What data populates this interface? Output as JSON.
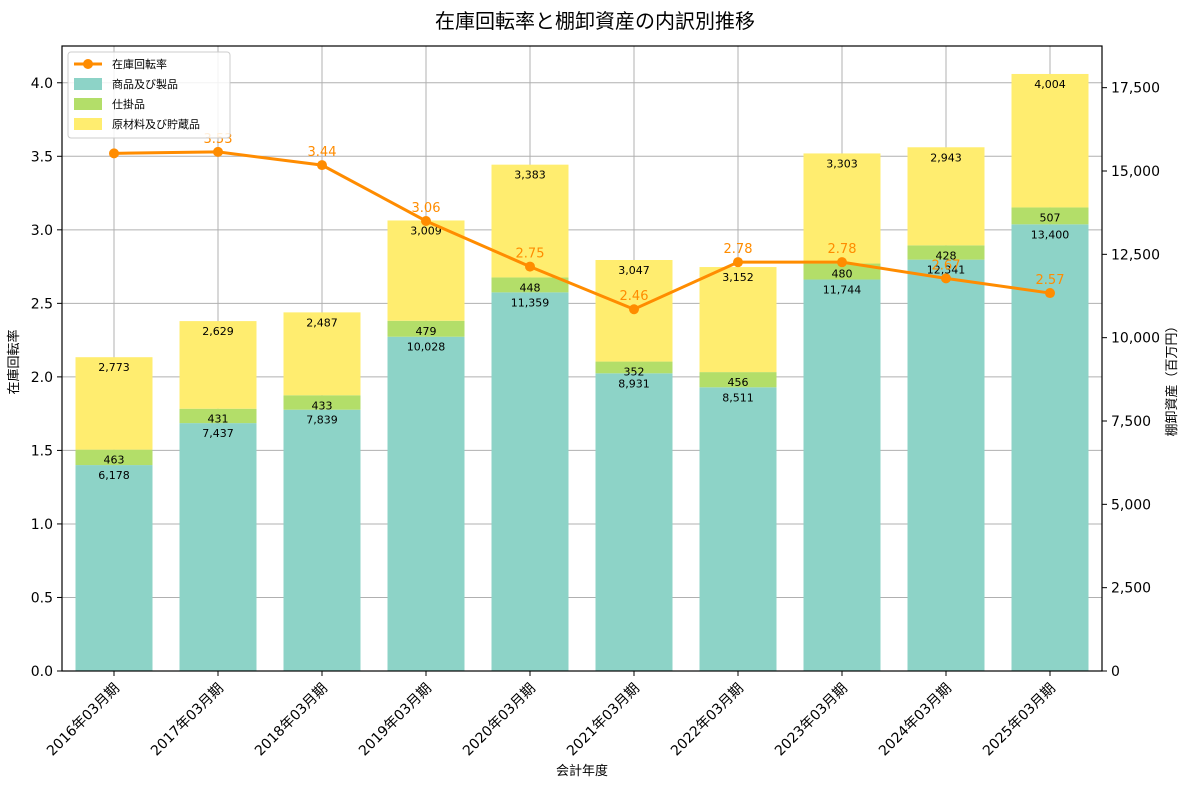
{
  "chart_data": {
    "type": "bar",
    "title": "在庫回転率と棚卸資産の内訳別推移",
    "xlabel": "会計年度",
    "ylabel_left": "在庫回転率",
    "ylabel_right": "棚卸資産（百万円）",
    "categories": [
      "2016年03月期",
      "2017年03月期",
      "2018年03月期",
      "2019年03月期",
      "2020年03月期",
      "2021年03月期",
      "2022年03月期",
      "2023年03月期",
      "2024年03月期",
      "2025年03月期"
    ],
    "bar_series": [
      {
        "name": "商品及び製品",
        "color": "#8dd3c7",
        "values": [
          6178,
          7437,
          7839,
          10028,
          11359,
          8931,
          8511,
          11744,
          12341,
          13400
        ],
        "labels": [
          "6,178",
          "7,437",
          "7,839",
          "10,028",
          "11,359",
          "8,931",
          "8,511",
          "11,744",
          "12,341",
          "13,400"
        ]
      },
      {
        "name": "仕掛品",
        "color": "#b3de69",
        "values": [
          463,
          431,
          433,
          479,
          448,
          352,
          456,
          480,
          428,
          507
        ],
        "labels": [
          "463",
          "431",
          "433",
          "479",
          "448",
          "352",
          "456",
          "480",
          "428",
          "507"
        ]
      },
      {
        "name": "原材料及び貯蔵品",
        "color": "#ffed6f",
        "values": [
          2773,
          2629,
          2487,
          3009,
          3383,
          3047,
          3152,
          3303,
          2943,
          4004
        ],
        "labels": [
          "2,773",
          "2,629",
          "2,487",
          "3,009",
          "3,383",
          "3,047",
          "3,152",
          "3,303",
          "2,943",
          "4,004"
        ]
      }
    ],
    "line_series": {
      "name": "在庫回転率",
      "color": "#ff8c00",
      "values": [
        3.52,
        3.53,
        3.44,
        3.06,
        2.75,
        2.46,
        2.78,
        2.78,
        2.67,
        2.57
      ],
      "labels": [
        "",
        "3.53",
        "3.44",
        "3.06",
        "2.75",
        "2.46",
        "2.78",
        "2.78",
        "2.67",
        "2.57"
      ]
    },
    "y_left": {
      "range": [
        0,
        4.25
      ],
      "ticks": [
        "0.0",
        "0.5",
        "1.0",
        "1.5",
        "2.0",
        "2.5",
        "3.0",
        "3.5",
        "4.0"
      ],
      "tick_values": [
        0,
        0.5,
        1,
        1.5,
        2,
        2.5,
        3,
        3.5,
        4
      ]
    },
    "y_right": {
      "range": [
        0,
        18750
      ],
      "ticks": [
        "0",
        "2,500",
        "5,000",
        "7,500",
        "10,000",
        "12,500",
        "15,000",
        "17,500"
      ],
      "tick_values": [
        0,
        2500,
        5000,
        7500,
        10000,
        12500,
        15000,
        17500
      ]
    },
    "grid": true,
    "legend_position": "top-left"
  }
}
